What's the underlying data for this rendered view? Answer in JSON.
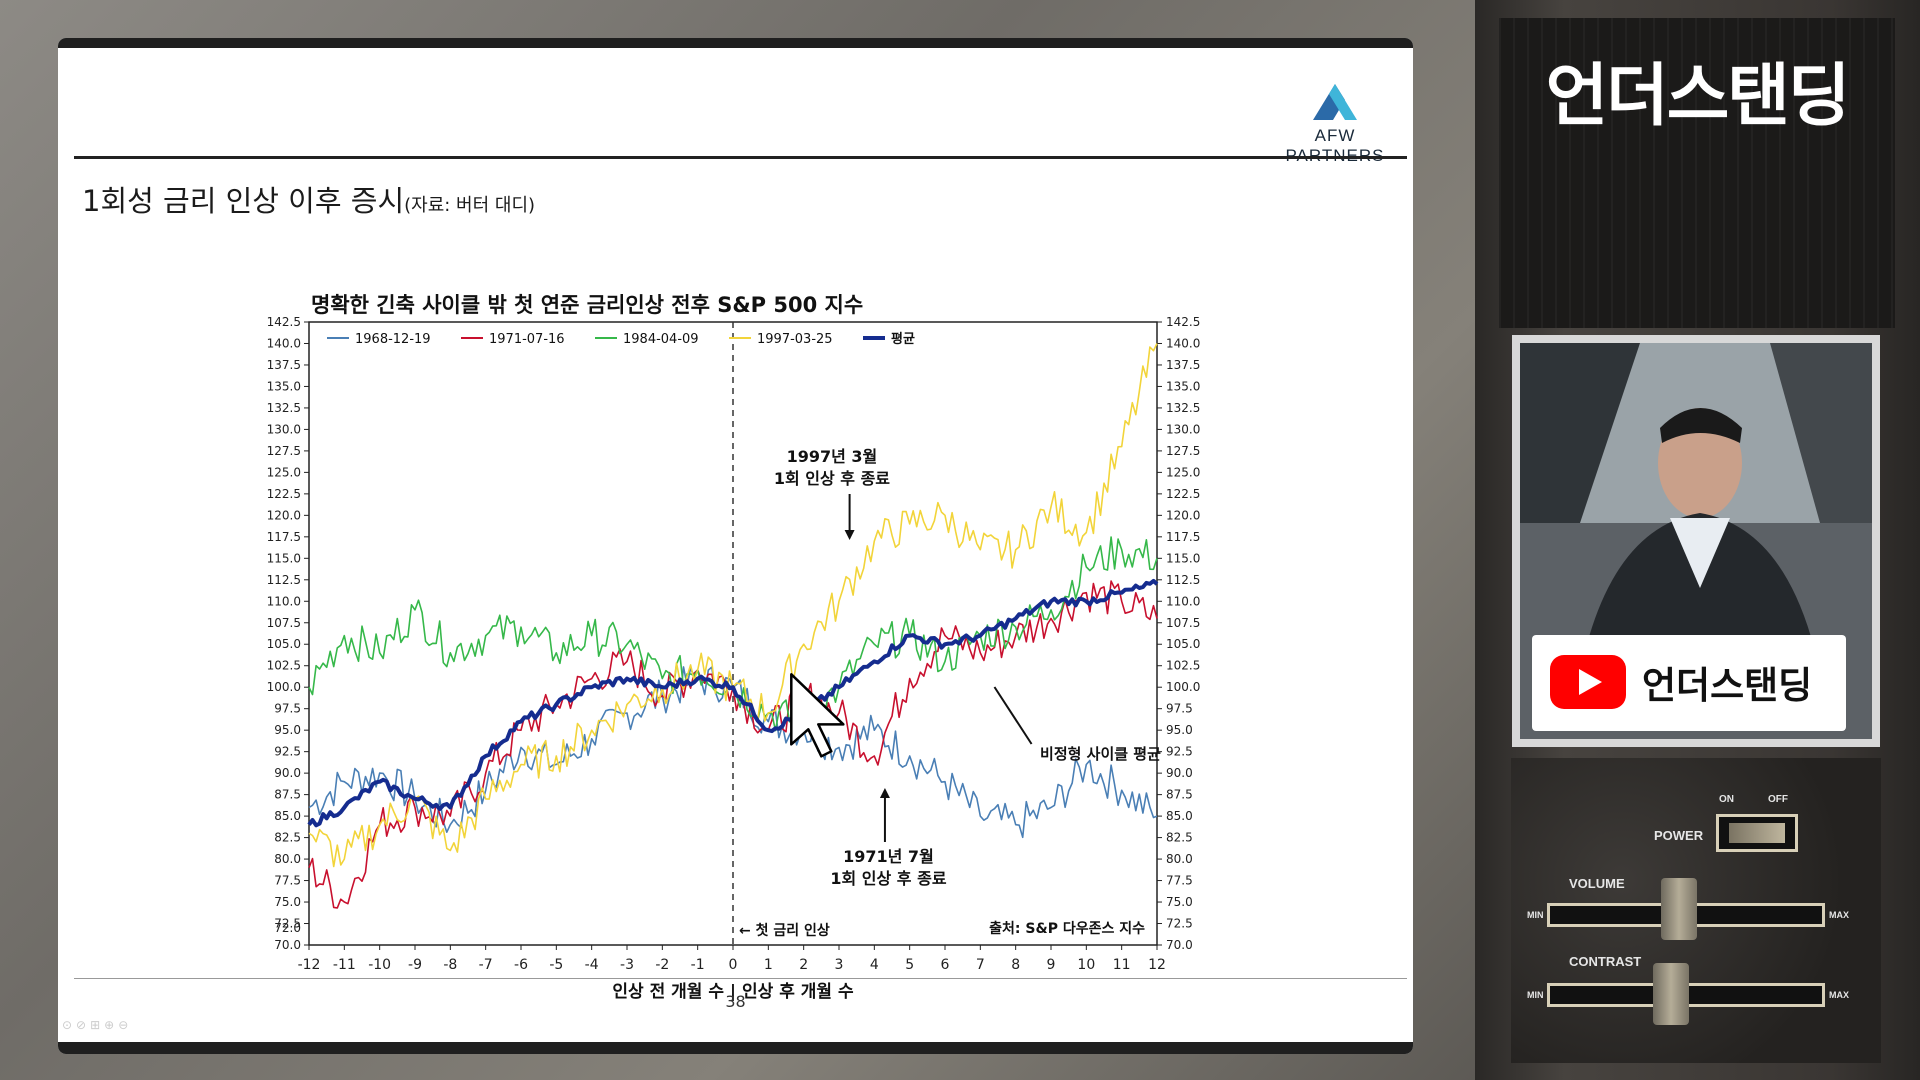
{
  "slide": {
    "logo_text": "AFW PARTNERS",
    "title": "1회성 금리 인상 이후 증시",
    "title_source": "(자료: 버터 대디)",
    "page_number": "38"
  },
  "chart_data": {
    "type": "line",
    "title": "명확한 긴축 사이클 밖 첫 연준 금리인상 전후 S&P 500 지수",
    "xlabel": "인상 전 개월 수 | 인상 후 개월 수",
    "ylabel": "",
    "xlim": [
      -12,
      12
    ],
    "ylim": [
      70,
      142.5
    ],
    "x_ticks": [
      "-12",
      "-11",
      "-10",
      "-9",
      "-8",
      "-7",
      "-6",
      "-5",
      "-4",
      "-3",
      "-2",
      "-1",
      "0",
      "1",
      "2",
      "3",
      "4",
      "5",
      "6",
      "7",
      "8",
      "9",
      "10",
      "11",
      "12"
    ],
    "y_ticks": [
      "70.0",
      "72.5",
      "75.0",
      "77.5",
      "80.0",
      "82.5",
      "85.0",
      "87.5",
      "90.0",
      "92.5",
      "95.0",
      "97.5",
      "100.0",
      "102.5",
      "105.0",
      "107.5",
      "110.0",
      "112.5",
      "115.0",
      "117.5",
      "120.0",
      "122.5",
      "125.0",
      "127.5",
      "130.0",
      "132.5",
      "135.0",
      "137.5",
      "140.0",
      "142.5"
    ],
    "y_ticks_left": [
      "70.0",
      "72.0",
      "72.5",
      "75.0",
      "77.5",
      "80.0",
      "82.5",
      "85.0",
      "87.5",
      "90.0",
      "92.5",
      "95.0",
      "97.5",
      "100.0",
      "102.5",
      "105.0",
      "107.5",
      "110.0",
      "112.5",
      "115.0",
      "117.5",
      "120.0",
      "122.5",
      "125.0",
      "127.5",
      "130.0",
      "132.5",
      "135.0",
      "137.5",
      "140.0",
      "142.5"
    ],
    "legend_position": "top-left",
    "grid": false,
    "x": [
      -12,
      -11,
      -10,
      -9,
      -8,
      -7,
      -6,
      -5,
      -4,
      -3,
      -2,
      -1,
      0,
      1,
      2,
      3,
      4,
      5,
      6,
      7,
      8,
      9,
      10,
      11,
      12
    ],
    "series": [
      {
        "name": "1968-12-19",
        "color": "#4a7fb5",
        "width": 1.6,
        "values": [
          86,
          89,
          90,
          87,
          84,
          88,
          93,
          91,
          94,
          97,
          99,
          101,
          100,
          96,
          95,
          93,
          95,
          92,
          89,
          85,
          84,
          86,
          91,
          88,
          85
        ]
      },
      {
        "name": "1971-07-16",
        "color": "#c8102e",
        "width": 1.6,
        "values": [
          79,
          75,
          84,
          86,
          85,
          90,
          95,
          98,
          101,
          103,
          99,
          102,
          100,
          95,
          99,
          97,
          92,
          101,
          106,
          104,
          106,
          108,
          111,
          110,
          108
        ]
      },
      {
        "name": "1984-04-09",
        "color": "#36b84a",
        "width": 1.6,
        "values": [
          100,
          106,
          104,
          109,
          104,
          106,
          107,
          104,
          106,
          105,
          101,
          102,
          100,
          97,
          96,
          100,
          105,
          106,
          103,
          106,
          107,
          109,
          114,
          116,
          115
        ]
      },
      {
        "name": "1997-03-25",
        "color": "#f2d43a",
        "width": 1.6,
        "values": [
          83,
          80,
          84,
          87,
          81,
          87,
          91,
          92,
          95,
          98,
          100,
          102,
          100,
          97,
          105,
          110,
          117,
          119,
          120,
          116,
          116,
          121,
          118,
          128,
          140
        ]
      },
      {
        "name": "평균",
        "color": "#152c8f",
        "width": 4,
        "values": [
          84,
          86,
          89,
          87,
          86,
          92,
          96,
          98,
          100,
          101,
          100,
          101,
          100,
          95,
          97,
          100,
          103,
          106,
          105,
          106,
          108,
          110,
          110,
          111,
          112
        ]
      }
    ],
    "markers": {
      "vertical_line_x": 0
    },
    "annotations": [
      {
        "id": "first-hike",
        "text": "← 첫 금리 인상"
      },
      {
        "id": "1997",
        "text": "1997년 3월",
        "text2": "1회 인상 후 종료"
      },
      {
        "id": "1971",
        "text": "1971년 7월",
        "text2": "1회 인상 후 종료"
      },
      {
        "id": "avg",
        "text": "비정형 사이클 평균"
      },
      {
        "id": "source",
        "text": "출처: S&P 다우존스 지수"
      }
    ]
  },
  "side": {
    "brand_title": "언더스탠딩",
    "youtube_label": "언더스탠딩",
    "device": {
      "power": "POWER",
      "on": "ON",
      "off": "OFF",
      "volume": "VOLUME",
      "contrast": "CONTRAST",
      "min": "MIN",
      "max": "MAX"
    }
  },
  "colors": {
    "youtube_red": "#ff0000",
    "average_line": "#152c8f"
  },
  "icons": {
    "logo": "mountain-logo-icon",
    "cursor": "mouse-pointer-icon",
    "youtube": "youtube-play-icon"
  }
}
